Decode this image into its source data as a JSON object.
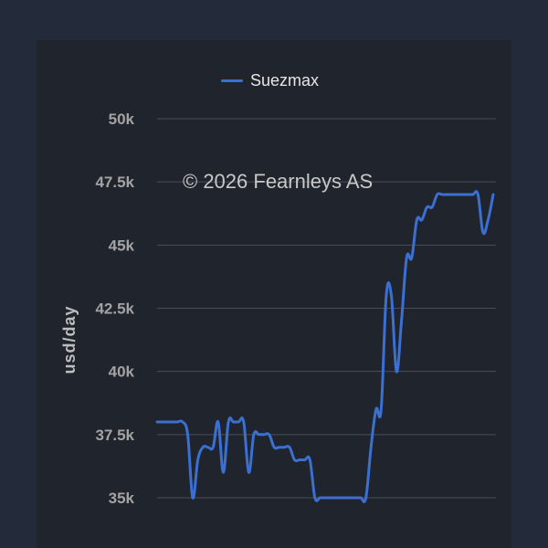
{
  "chart_data": {
    "type": "line",
    "ylabel": "usd/day",
    "ylim": [
      35000,
      50000
    ],
    "yticks": [
      {
        "value": 50000,
        "label": "50k"
      },
      {
        "value": 47500,
        "label": "47.5k"
      },
      {
        "value": 45000,
        "label": "45k"
      },
      {
        "value": 42500,
        "label": "42.5k"
      },
      {
        "value": 40000,
        "label": "40k"
      },
      {
        "value": 37500,
        "label": "37.5k"
      },
      {
        "value": 35000,
        "label": "35k"
      }
    ],
    "grid": true,
    "legend_position": "top-center",
    "watermark": "© 2026 Fearnleys AS",
    "series": [
      {
        "name": "Suezmax",
        "color": "#3b6fd1",
        "values": [
          38000,
          38000,
          38000,
          38000,
          38000,
          38000,
          37500,
          35000,
          36500,
          37000,
          37000,
          37000,
          38000,
          36000,
          38000,
          38000,
          38000,
          38000,
          36000,
          37500,
          37500,
          37500,
          37500,
          37000,
          37000,
          37000,
          37000,
          36500,
          36500,
          36500,
          36500,
          35000,
          35000,
          35000,
          35000,
          35000,
          35000,
          35000,
          35000,
          35000,
          35000,
          35000,
          37000,
          38500,
          38500,
          43000,
          43000,
          40000,
          42000,
          44500,
          44500,
          46000,
          46000,
          46500,
          46500,
          47000,
          47000,
          47000,
          47000,
          47000,
          47000,
          47000,
          47000,
          47000,
          45500,
          46000,
          47000
        ]
      }
    ]
  }
}
